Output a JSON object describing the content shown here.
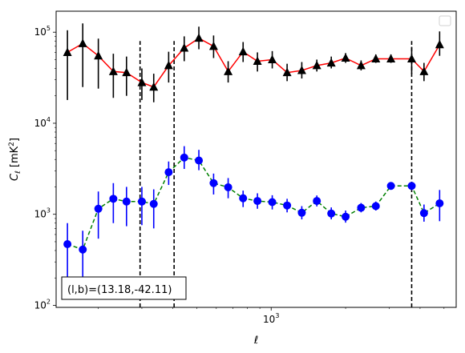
{
  "chart_data": {
    "type": "line",
    "xlabel": "ℓ",
    "ylabel_main": "C",
    "ylabel_sub": "ℓ",
    "ylabel_unit_open": " [mK",
    "ylabel_unit_sup": "2",
    "ylabel_unit_close": "]",
    "xscale": "log",
    "yscale": "log",
    "xlim": [
      135,
      5600
    ],
    "ylim": [
      95,
      170000
    ],
    "x_tick_labels": [
      {
        "value": 1000,
        "base": "10",
        "exp": "3"
      }
    ],
    "y_tick_labels": [
      {
        "value": 100,
        "base": "10",
        "exp": "2"
      },
      {
        "value": 1000,
        "base": "10",
        "exp": "3"
      },
      {
        "value": 10000,
        "base": "10",
        "exp": "4"
      },
      {
        "value": 100000,
        "base": "10",
        "exp": "5"
      }
    ],
    "legend": {
      "placement": "top-right",
      "entries": []
    },
    "annotation": {
      "text": "(l,b)=(13.18,-42.11)",
      "placement": "bottom-left"
    },
    "vlines": [
      {
        "x": 295,
        "ymax": 80000
      },
      {
        "x": 405,
        "ymax": 80000
      },
      {
        "x": 3700,
        "ymax": 80000
      }
    ],
    "series": [
      {
        "marker": "triangle",
        "color": "#000000",
        "line_color": "#ff0000",
        "line_style": "solid",
        "x": [
          150,
          173,
          200,
          230,
          260,
          300,
          335,
          385,
          445,
          510,
          585,
          670,
          770,
          880,
          1010,
          1160,
          1330,
          1530,
          1750,
          2000,
          2310,
          2650,
          3050,
          3700,
          4150,
          4800
        ],
        "y": [
          60000,
          75000,
          55000,
          37000,
          36000,
          28000,
          25000,
          43000,
          67000,
          86000,
          70000,
          37000,
          61000,
          48000,
          50000,
          36000,
          38000,
          43000,
          46000,
          52000,
          43000,
          51000,
          51000,
          51000,
          37000,
          73000
        ],
        "err_low": [
          18000,
          25000,
          24000,
          19000,
          20000,
          18000,
          17000,
          28000,
          48000,
          65000,
          52000,
          28000,
          47000,
          37000,
          40000,
          29000,
          31000,
          37000,
          40000,
          46000,
          38000,
          46000,
          46000,
          35000,
          29000,
          55000
        ],
        "err_high": [
          105000,
          125000,
          85000,
          58000,
          54000,
          40000,
          35000,
          61000,
          90000,
          115000,
          92000,
          48000,
          78000,
          60000,
          62000,
          45000,
          47000,
          50000,
          54000,
          59000,
          49000,
          57000,
          57000,
          69000,
          46000,
          102000
        ]
      },
      {
        "marker": "circle",
        "color": "#0000ff",
        "line_color": "#008000",
        "line_style": "dashed",
        "x": [
          150,
          173,
          200,
          230,
          260,
          300,
          335,
          385,
          445,
          510,
          585,
          670,
          770,
          880,
          1010,
          1160,
          1330,
          1530,
          1750,
          2000,
          2310,
          2650,
          3050,
          3700,
          4150,
          4800
        ],
        "y": [
          470,
          410,
          1150,
          1480,
          1380,
          1380,
          1300,
          2900,
          4200,
          3900,
          2200,
          1980,
          1500,
          1400,
          1360,
          1250,
          1040,
          1400,
          1020,
          940,
          1180,
          1230,
          2050,
          2050,
          1030,
          1320
        ],
        "err_low": [
          190,
          155,
          540,
          800,
          740,
          760,
          700,
          2100,
          3150,
          3050,
          1650,
          1500,
          1200,
          1150,
          1130,
          1050,
          880,
          1220,
          880,
          810,
          1050,
          1100,
          1900,
          1900,
          830,
          840
        ],
        "err_high": [
          800,
          660,
          1780,
          2200,
          2000,
          2000,
          1880,
          3800,
          5600,
          5100,
          2800,
          2500,
          1820,
          1700,
          1620,
          1480,
          1230,
          1610,
          1190,
          1100,
          1330,
          1380,
          2250,
          2250,
          1280,
          1850
        ]
      }
    ]
  }
}
